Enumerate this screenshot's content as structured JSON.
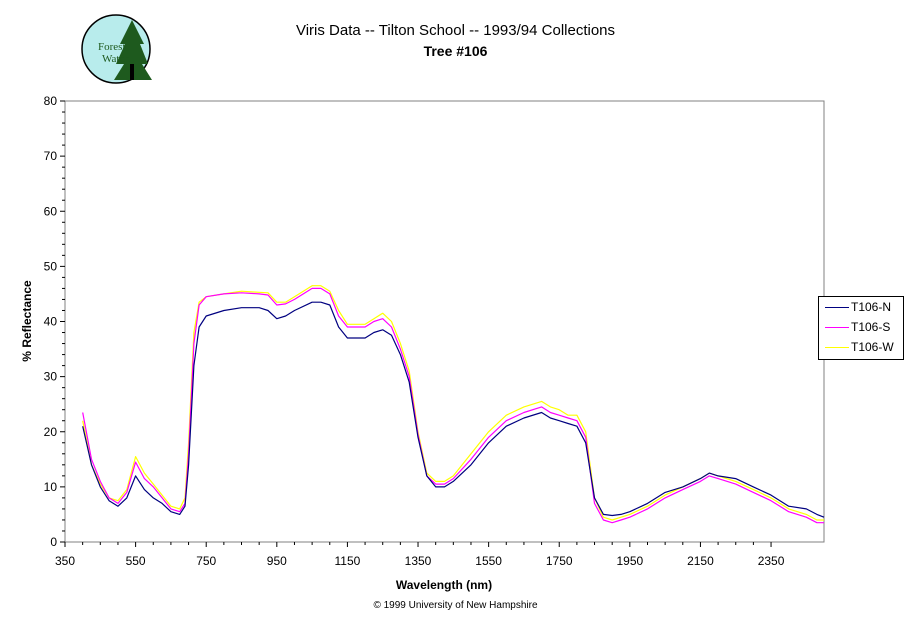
{
  "header": {
    "title_line1": "Viris Data -- Tilton School -- 1993/94 Collections",
    "title_line2": "Tree #106"
  },
  "logo": {
    "icon": "forest-watch-logo-icon",
    "text_line1": "Forest",
    "text_line2": "Watch",
    "colors": {
      "circle": "#b8ecec",
      "tree": "#1e5a1e",
      "trunk": "#000000"
    }
  },
  "footer": {
    "copyright": "© 1999 University of New Hampshire"
  },
  "colors": {
    "plot_border": "#808080"
  },
  "chart_data": {
    "type": "line",
    "title": "Viris Data -- Tilton School -- 1993/94 Collections",
    "subtitle": "Tree #106",
    "xlabel": "Wavelength (nm)",
    "ylabel": "% Reflectance",
    "xlim": [
      350,
      2500
    ],
    "ylim": [
      0,
      80
    ],
    "xticks": [
      350,
      550,
      750,
      950,
      1150,
      1350,
      1550,
      1750,
      1950,
      2150,
      2350
    ],
    "yticks": [
      0,
      10,
      20,
      30,
      40,
      50,
      60,
      70,
      80
    ],
    "grid": false,
    "legend": "right",
    "x": [
      400,
      425,
      450,
      475,
      500,
      525,
      550,
      575,
      600,
      625,
      650,
      675,
      690,
      700,
      715,
      730,
      750,
      800,
      850,
      900,
      925,
      950,
      975,
      1000,
      1050,
      1075,
      1100,
      1125,
      1150,
      1200,
      1225,
      1250,
      1275,
      1300,
      1325,
      1350,
      1375,
      1400,
      1425,
      1450,
      1500,
      1550,
      1600,
      1650,
      1700,
      1725,
      1750,
      1775,
      1800,
      1825,
      1850,
      1875,
      1900,
      1925,
      1950,
      2000,
      2050,
      2100,
      2150,
      2175,
      2200,
      2250,
      2300,
      2350,
      2400,
      2450,
      2480,
      2500
    ],
    "series": [
      {
        "name": "T106-N",
        "color": "#000080",
        "values": [
          21,
          14,
          10,
          7.5,
          6.5,
          8,
          12,
          9.5,
          8,
          7,
          5.5,
          5,
          6.5,
          14,
          32,
          39,
          41,
          42,
          42.5,
          42.5,
          42,
          40.5,
          41,
          42,
          43.5,
          43.5,
          43,
          39,
          37,
          37,
          38,
          38.5,
          37.5,
          34,
          29,
          19,
          12,
          10,
          10,
          11,
          14,
          18,
          21,
          22.5,
          23.5,
          22.5,
          22,
          21.5,
          21,
          18,
          8,
          5,
          4.8,
          5,
          5.5,
          7,
          9,
          10,
          11.5,
          12.5,
          12,
          11.5,
          10,
          8.5,
          6.5,
          6,
          5,
          4.5
        ]
      },
      {
        "name": "T106-S",
        "color": "#ff00ff",
        "values": [
          23.5,
          15,
          11,
          8,
          7,
          9,
          14.5,
          11.5,
          10,
          8,
          6,
          5.5,
          7,
          16,
          36,
          43,
          44.5,
          45,
          45.2,
          45,
          44.8,
          43,
          43.2,
          44,
          46,
          46,
          45,
          41,
          39,
          39,
          40,
          40.5,
          39,
          35,
          30,
          19.5,
          12,
          10.5,
          10.5,
          11.5,
          15,
          19,
          22,
          23.5,
          24.5,
          23.5,
          23,
          22.5,
          22,
          19,
          7,
          4,
          3.5,
          4,
          4.5,
          6,
          8,
          9.5,
          11,
          12,
          11.5,
          10.5,
          9,
          7.5,
          5.5,
          4.5,
          3.5,
          3.5
        ]
      },
      {
        "name": "T106-W",
        "color": "#ffff00",
        "values": [
          22,
          14,
          10.5,
          8,
          7.5,
          9.5,
          15.5,
          12.5,
          10.5,
          8.5,
          6.5,
          6,
          8,
          18,
          38,
          43.5,
          44.5,
          45,
          45.5,
          45.3,
          45.2,
          43.5,
          43.5,
          44.5,
          46.5,
          46.5,
          45.5,
          42,
          39.5,
          39.5,
          40.5,
          41.5,
          40,
          36,
          31,
          20,
          12.5,
          11,
          11,
          12,
          16,
          20,
          23,
          24.5,
          25.5,
          24.5,
          24,
          23,
          23,
          20,
          8,
          4.5,
          4,
          4.5,
          5,
          6.5,
          8.5,
          10,
          11.5,
          12.5,
          12,
          11,
          9.5,
          8,
          6,
          5,
          4,
          4
        ]
      }
    ]
  }
}
